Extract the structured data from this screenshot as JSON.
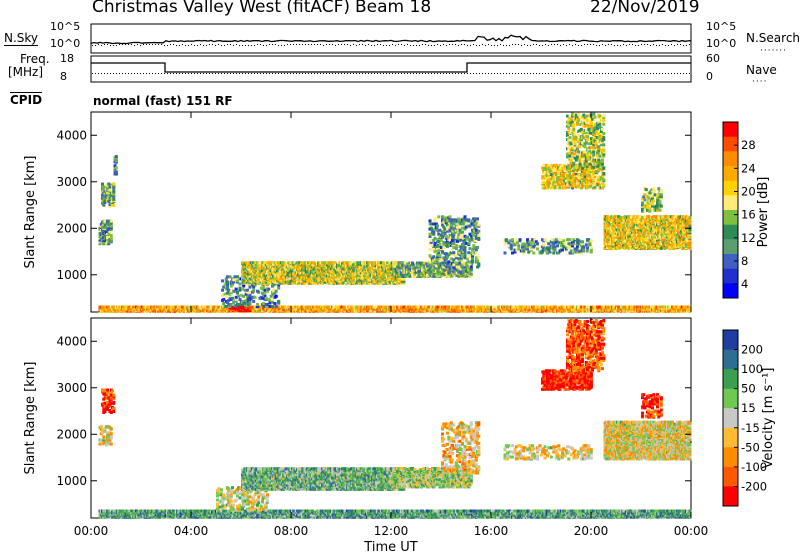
{
  "header": {
    "title": "Christmas Valley West (fitACF)",
    "beam": "Beam 18",
    "date": "22/Nov/2019"
  },
  "top_panels": {
    "nsky_label": "N.Sky",
    "nsky_ticks": [
      "10^5",
      "10^0"
    ],
    "nsearch_label": "N.Search",
    "nsearch_ticks": [
      "10^5",
      "10^0"
    ],
    "freq_label": "Freq.",
    "freq_unit": "[MHz]",
    "freq_ticks": [
      "18",
      "8"
    ],
    "nave_label": "Nave",
    "nave_ticks": [
      "60",
      "0"
    ],
    "cpid_label": "CPID",
    "cpid_text": "normal (fast) 151 RF"
  },
  "chart_data": [
    {
      "type": "heatmap",
      "name": "power",
      "ylabel": "Slant Range [km]",
      "xlabel": "",
      "xlim": [
        0,
        24
      ],
      "ylim": [
        200,
        4500
      ],
      "x_tick_values": [
        0,
        4,
        8,
        12,
        16,
        20,
        24
      ],
      "x_tick_labels": [
        "00:00",
        "04:00",
        "08:00",
        "12:00",
        "16:00",
        "20:00",
        "00:00"
      ],
      "y_ticks": [
        1000,
        2000,
        3000,
        4000
      ],
      "colorbar": {
        "label": "Power [dB]",
        "ticks": [
          "28",
          "24",
          "20",
          "16",
          "12",
          "8",
          "4"
        ],
        "colors": [
          "#ff0000",
          "#ff4b00",
          "#ff8c00",
          "#ffaa00",
          "#ffd200",
          "#ffea7a",
          "#7fbf3f",
          "#2e8b57",
          "#5a9e6f",
          "#3f5fc2",
          "#2030d0",
          "#0000ff"
        ]
      },
      "regions": [
        {
          "t": [
            0.3,
            24
          ],
          "r": [
            250,
            350
          ],
          "level": 0.7,
          "density": 0.95
        },
        {
          "t": [
            5.5,
            6.3
          ],
          "r": [
            240,
            330
          ],
          "level": 1.0,
          "density": 0.9
        },
        {
          "t": [
            5.2,
            7.5
          ],
          "r": [
            350,
            1000
          ],
          "level": 0.3,
          "density": 0.15
        },
        {
          "t": [
            6.0,
            12.5
          ],
          "r": [
            850,
            1300
          ],
          "level": 0.55,
          "density": 0.75
        },
        {
          "t": [
            12.0,
            15.2
          ],
          "r": [
            1000,
            1300
          ],
          "level": 0.4,
          "density": 0.55
        },
        {
          "t": [
            13.5,
            15.5
          ],
          "r": [
            1200,
            2300
          ],
          "level": 0.35,
          "density": 0.2
        },
        {
          "t": [
            0.3,
            0.8
          ],
          "r": [
            1700,
            2200
          ],
          "level": 0.35,
          "density": 0.4
        },
        {
          "t": [
            0.4,
            0.9
          ],
          "r": [
            2500,
            3000
          ],
          "level": 0.4,
          "density": 0.35
        },
        {
          "t": [
            0.9,
            1.0
          ],
          "r": [
            3200,
            3600
          ],
          "level": 0.3,
          "density": 0.4
        },
        {
          "t": [
            18.0,
            20.5
          ],
          "r": [
            2900,
            3400
          ],
          "level": 0.6,
          "density": 0.35
        },
        {
          "t": [
            19.0,
            20.5
          ],
          "r": [
            3300,
            4500
          ],
          "level": 0.5,
          "density": 0.25
        },
        {
          "t": [
            20.5,
            24
          ],
          "r": [
            1600,
            2300
          ],
          "level": 0.6,
          "density": 0.7
        },
        {
          "t": [
            16.5,
            20.0
          ],
          "r": [
            1500,
            1800
          ],
          "level": 0.35,
          "density": 0.2
        },
        {
          "t": [
            22.0,
            22.8
          ],
          "r": [
            2400,
            2900
          ],
          "level": 0.45,
          "density": 0.2
        }
      ]
    },
    {
      "type": "heatmap",
      "name": "velocity",
      "ylabel": "Slant Range [km]",
      "xlabel": "Time UT",
      "xlim": [
        0,
        24
      ],
      "ylim": [
        200,
        4500
      ],
      "x_tick_values": [
        0,
        4,
        8,
        12,
        16,
        20,
        24
      ],
      "x_tick_labels": [
        "00:00",
        "04:00",
        "08:00",
        "12:00",
        "16:00",
        "20:00",
        "00:00"
      ],
      "y_ticks": [
        1000,
        2000,
        3000,
        4000
      ],
      "colorbar": {
        "label": "Velocity [m s⁻¹]",
        "ticks": [
          "200",
          "100",
          "50",
          "15",
          "-15",
          "-50",
          "-100",
          "-200"
        ],
        "colors": [
          "#1e3fa0",
          "#2f6e90",
          "#3aa050",
          "#70c850",
          "#c8c8c8",
          "#ffbb33",
          "#ff8c00",
          "#ff5a00",
          "#ff0000"
        ]
      },
      "regions": [
        {
          "t": [
            0.3,
            24
          ],
          "r": [
            250,
            400
          ],
          "level": 0.3,
          "density": 0.85
        },
        {
          "t": [
            5.0,
            7.0
          ],
          "r": [
            400,
            900
          ],
          "level": 0.5,
          "density": 0.2
        },
        {
          "t": [
            6.0,
            12.5
          ],
          "r": [
            850,
            1300
          ],
          "level": 0.35,
          "density": 0.75
        },
        {
          "t": [
            12.0,
            15.2
          ],
          "r": [
            900,
            1300
          ],
          "level": 0.45,
          "density": 0.55
        },
        {
          "t": [
            14.0,
            15.5
          ],
          "r": [
            1200,
            2300
          ],
          "level": 0.6,
          "density": 0.2
        },
        {
          "t": [
            0.3,
            0.8
          ],
          "r": [
            1800,
            2200
          ],
          "level": 0.55,
          "density": 0.3
        },
        {
          "t": [
            0.4,
            0.9
          ],
          "r": [
            2500,
            3000
          ],
          "level": 0.9,
          "density": 0.3
        },
        {
          "t": [
            18.0,
            20.0
          ],
          "r": [
            3000,
            3400
          ],
          "level": 0.95,
          "density": 0.4
        },
        {
          "t": [
            19.0,
            20.5
          ],
          "r": [
            3400,
            4500
          ],
          "level": 0.85,
          "density": 0.3
        },
        {
          "t": [
            20.5,
            24
          ],
          "r": [
            1500,
            2300
          ],
          "level": 0.55,
          "density": 0.7
        },
        {
          "t": [
            16.5,
            20.0
          ],
          "r": [
            1500,
            1800
          ],
          "level": 0.55,
          "density": 0.2
        },
        {
          "t": [
            22.0,
            22.8
          ],
          "r": [
            2400,
            2900
          ],
          "level": 0.95,
          "density": 0.25
        }
      ]
    }
  ]
}
